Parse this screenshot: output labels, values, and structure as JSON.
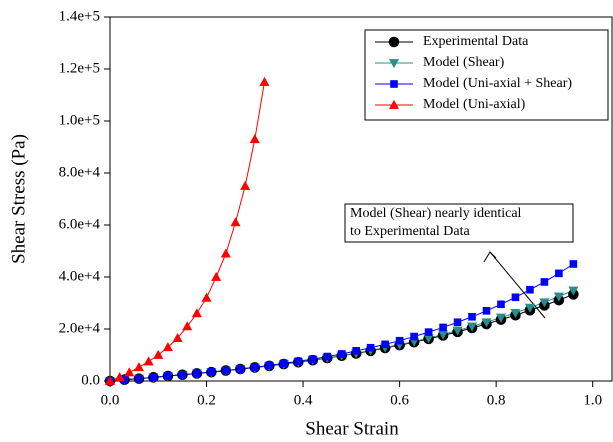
{
  "chart_data": {
    "type": "line",
    "xlabel": "Shear Strain",
    "ylabel": "Shear Stress (Pa)",
    "xlim": [
      0,
      1.04
    ],
    "ylim": [
      0,
      140000
    ],
    "xticks": [
      {
        "value": 0,
        "label": "0.0"
      },
      0.2,
      0.4,
      0.6,
      0.8,
      {
        "value": 1,
        "label": "1.0"
      }
    ],
    "yticks": [
      {
        "value": 0,
        "label": "0.0"
      },
      {
        "value": 20000,
        "label": "2.0e+4"
      },
      {
        "value": 40000,
        "label": "4.0e+4"
      },
      {
        "value": 60000,
        "label": "6.0e+4"
      },
      {
        "value": 80000,
        "label": "8.0e+4"
      },
      {
        "value": 100000,
        "label": "1.0e+5"
      },
      {
        "value": 120000,
        "label": "1.2e+5"
      },
      {
        "value": 140000,
        "label": "1.4e+5"
      }
    ],
    "legend": "upper right",
    "annotation": [
      "Model (Shear) nearly identical",
      "to Experimental Data"
    ],
    "series": [
      {
        "name": "Experimental Data",
        "color": "#000000",
        "marker": "circle",
        "x": [
          0,
          0.03,
          0.06,
          0.09,
          0.12,
          0.15,
          0.18,
          0.21,
          0.24,
          0.27,
          0.3,
          0.33,
          0.36,
          0.39,
          0.42,
          0.45,
          0.48,
          0.51,
          0.54,
          0.57,
          0.6,
          0.63,
          0.66,
          0.69,
          0.72,
          0.75,
          0.78,
          0.81,
          0.84,
          0.87,
          0.9,
          0.93,
          0.96
        ],
        "values": [
          0,
          500,
          900,
          1400,
          1900,
          2400,
          2900,
          3400,
          4000,
          4600,
          5200,
          5800,
          6500,
          7200,
          8000,
          8800,
          9700,
          10600,
          11600,
          12700,
          13800,
          14900,
          16200,
          17500,
          18900,
          20400,
          21900,
          23600,
          25300,
          27200,
          29100,
          31100,
          33300
        ]
      },
      {
        "name": "Model (Shear)",
        "color": "#2a8c8c",
        "marker": "triangle-down",
        "x": [
          0,
          0.03,
          0.06,
          0.09,
          0.12,
          0.15,
          0.18,
          0.21,
          0.24,
          0.27,
          0.3,
          0.33,
          0.36,
          0.39,
          0.42,
          0.45,
          0.48,
          0.51,
          0.54,
          0.57,
          0.6,
          0.63,
          0.66,
          0.69,
          0.72,
          0.75,
          0.78,
          0.81,
          0.84,
          0.87,
          0.9,
          0.93,
          0.96
        ],
        "values": [
          0,
          500,
          900,
          1400,
          1900,
          2400,
          2900,
          3400,
          4000,
          4600,
          5200,
          5800,
          6500,
          7300,
          8100,
          8900,
          9800,
          10700,
          11800,
          12900,
          14000,
          15200,
          16500,
          17900,
          19400,
          21000,
          22600,
          24400,
          26200,
          28200,
          30300,
          32500,
          34800
        ]
      },
      {
        "name": "Model (Uni-axial + Shear)",
        "color": "#0000ff",
        "marker": "square",
        "x": [
          0,
          0.03,
          0.06,
          0.09,
          0.12,
          0.15,
          0.18,
          0.21,
          0.24,
          0.27,
          0.3,
          0.33,
          0.36,
          0.39,
          0.42,
          0.45,
          0.48,
          0.51,
          0.54,
          0.57,
          0.6,
          0.63,
          0.66,
          0.69,
          0.72,
          0.75,
          0.78,
          0.81,
          0.84,
          0.87,
          0.9,
          0.93,
          0.96
        ],
        "values": [
          0,
          500,
          900,
          1400,
          1900,
          2400,
          2900,
          3500,
          4000,
          4600,
          5300,
          6000,
          6800,
          7600,
          8400,
          9400,
          10400,
          11600,
          12800,
          14100,
          15500,
          17100,
          18800,
          20600,
          22600,
          24700,
          27000,
          29500,
          32200,
          35100,
          38100,
          41400,
          45000
        ]
      },
      {
        "name": "Model (Uni-axial)",
        "color": "#ff0000",
        "marker": "triangle-up",
        "x": [
          0,
          0.02,
          0.04,
          0.06,
          0.08,
          0.1,
          0.12,
          0.14,
          0.16,
          0.18,
          0.2,
          0.22,
          0.24,
          0.26,
          0.28,
          0.3,
          0.32
        ],
        "values": [
          0,
          1500,
          3300,
          5300,
          7500,
          10000,
          13000,
          16500,
          21000,
          26000,
          32000,
          40000,
          49000,
          61000,
          75000,
          93000,
          115000
        ]
      }
    ]
  }
}
